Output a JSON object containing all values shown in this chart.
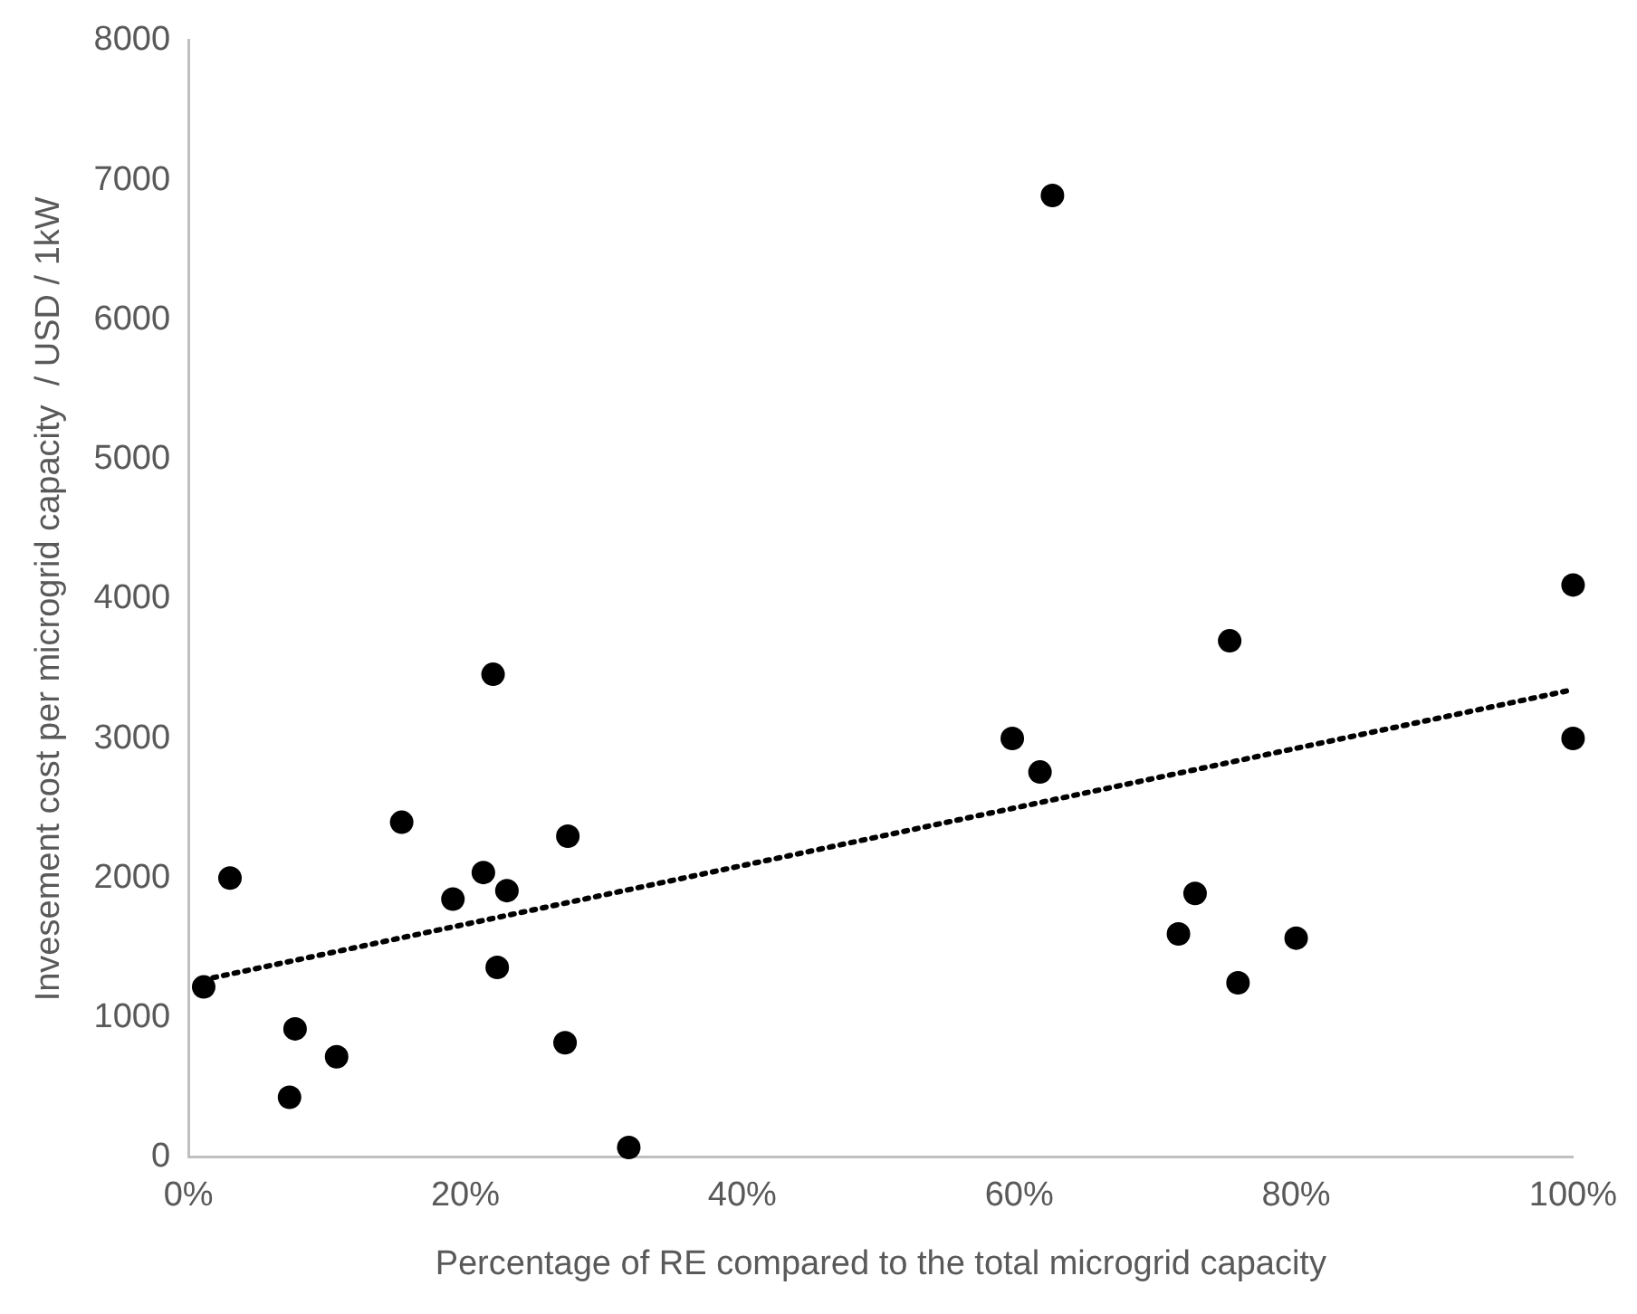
{
  "chart_data": {
    "type": "scatter",
    "xlabel": "Percentage of RE compared to the total microgrid capacity",
    "ylabel": "Invesement cost per microgrid capacity  / USD / 1kW",
    "xlim": [
      0,
      100
    ],
    "ylim": [
      0,
      8000
    ],
    "xticks": [
      {
        "value": 0,
        "label": "0%"
      },
      {
        "value": 20,
        "label": "20%"
      },
      {
        "value": 40,
        "label": "40%"
      },
      {
        "value": 60,
        "label": "60%"
      },
      {
        "value": 80,
        "label": "80%"
      },
      {
        "value": 100,
        "label": "100%"
      }
    ],
    "yticks": [
      0,
      1000,
      2000,
      3000,
      4000,
      5000,
      6000,
      7000,
      8000
    ],
    "grid": false,
    "legend": false,
    "marker": "circle",
    "series": [
      {
        "color": "#000000",
        "x": [
          1.1,
          3.0,
          7.7,
          7.3,
          10.7,
          15.4,
          19.1,
          21.3,
          22.0,
          23.0,
          22.3,
          27.4,
          27.2,
          31.8,
          62.4,
          59.5,
          61.5,
          75.2,
          100,
          100,
          72.7,
          71.5,
          80,
          75.8
        ],
        "values": [
          1220,
          2000,
          920,
          430,
          720,
          2400,
          1850,
          2040,
          3460,
          1910,
          1360,
          2300,
          820,
          70,
          6890,
          3000,
          2760,
          3700,
          4100,
          3000,
          1890,
          1600,
          1570,
          1250
        ]
      },
      {
        "type": "line",
        "color": "#000000",
        "line_style": "dotted",
        "marker": "none",
        "x": [
          1,
          100
        ],
        "values": [
          1270,
          3350
        ]
      }
    ]
  }
}
